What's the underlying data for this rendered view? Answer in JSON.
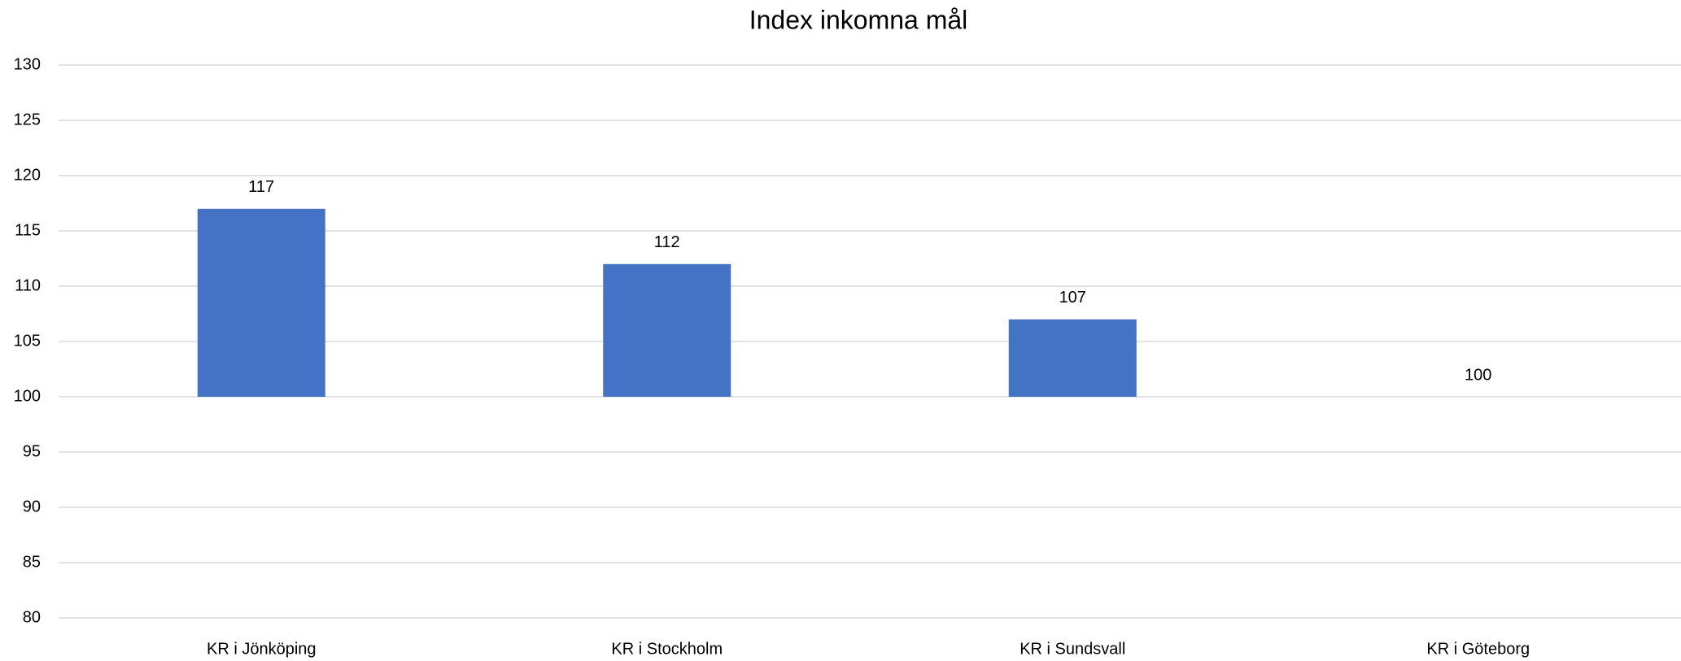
{
  "chart_data": {
    "type": "bar",
    "title": "Index inkomna mål",
    "categories": [
      "KR i Jönköping",
      "KR i Stockholm",
      "KR i Sundsvall",
      "KR i Göteborg"
    ],
    "values": [
      117,
      112,
      107,
      100
    ],
    "color": "#4472c4",
    "ylim": [
      80,
      130
    ],
    "yticks": [
      80,
      85,
      90,
      95,
      100,
      105,
      110,
      115,
      120,
      125,
      130
    ],
    "grid": true,
    "xaxis_crosses": 100
  }
}
